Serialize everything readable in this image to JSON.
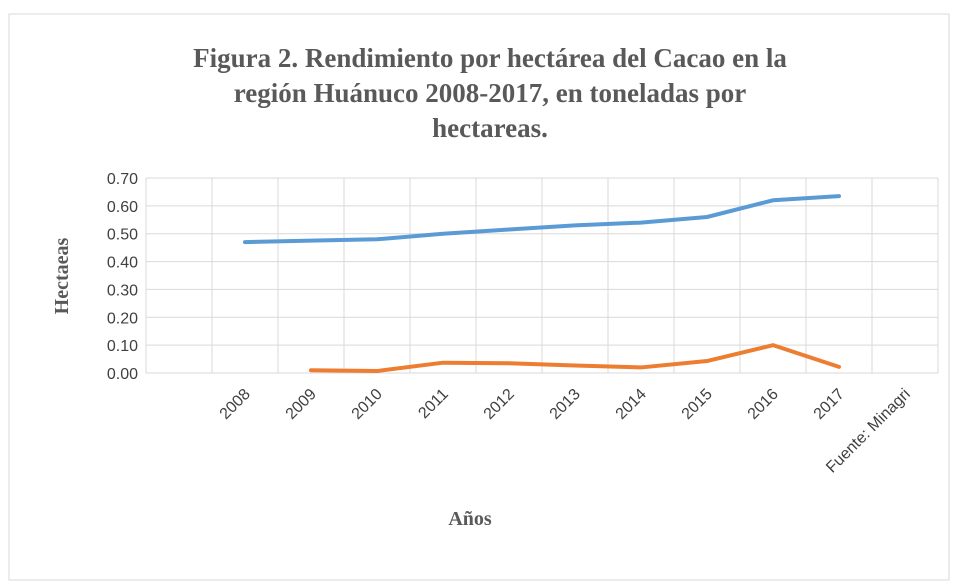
{
  "chart_data": {
    "type": "line",
    "title": [
      "Figura 2. Rendimiento por hectárea del Cacao en la",
      "región Huánuco 2008-2017, en toneladas por",
      "hectareas."
    ],
    "x_label": "Años",
    "y_label": "Hectaeas",
    "categories": [
      null,
      "2008",
      "2009",
      "2010",
      "2011",
      "2012",
      "2013",
      "2014",
      "2015",
      "2016",
      "2017",
      "Fuente: Minagri"
    ],
    "series": [
      {
        "color": "#5b9bd5",
        "values": [
          null,
          0.47,
          0.475,
          0.48,
          0.5,
          0.515,
          0.53,
          0.54,
          0.56,
          0.62,
          0.635,
          null
        ]
      },
      {
        "color": "#ed7d31",
        "values": [
          null,
          null,
          0.01,
          0.007,
          0.037,
          0.035,
          0.027,
          0.02,
          0.043,
          0.1,
          0.022,
          null
        ]
      }
    ],
    "ylim": [
      0,
      0.7
    ],
    "yticks": [
      {
        "value": 0,
        "label": "0.00"
      },
      {
        "value": 0.1,
        "label": "0.10"
      },
      {
        "value": 0.2,
        "label": "0.20"
      },
      {
        "value": 0.3,
        "label": "0.30"
      },
      {
        "value": 0.4,
        "label": "0.40"
      },
      {
        "value": 0.5,
        "label": "0.50"
      },
      {
        "value": 0.6,
        "label": "0.60"
      },
      {
        "value": 0.7,
        "label": "0.70"
      }
    ],
    "grid": true
  }
}
